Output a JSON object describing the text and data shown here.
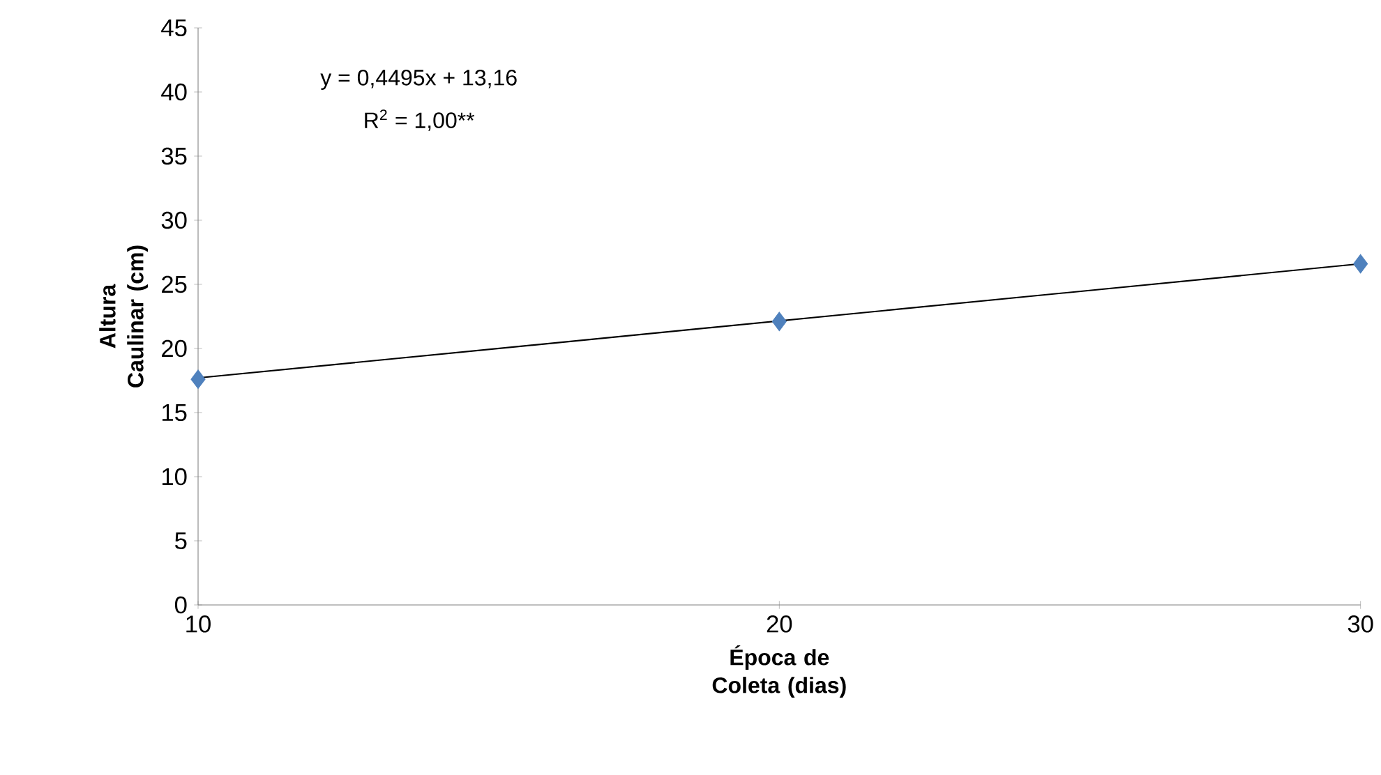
{
  "chart_data": {
    "type": "scatter",
    "xlabel": "Época de Coleta (dias)",
    "ylabel": "Altura Caulinar (cm)",
    "series": [
      {
        "color": "#4f81bd",
        "marker": "diamond",
        "x": [
          10,
          20,
          30
        ],
        "values": [
          17.6,
          22.1,
          26.6
        ]
      },
      {
        "type": "line",
        "color": "#000000",
        "marker": "none",
        "line_style": "solid",
        "x": [
          10,
          30
        ],
        "values": [
          17.7,
          26.6
        ]
      }
    ],
    "annotations": [
      "y = 0,4495x + 13,16",
      "R$^{2}$ = 1,00**"
    ],
    "xlim": [
      10,
      30
    ],
    "xticks": [
      10,
      20,
      30
    ],
    "ylim": [
      0,
      45
    ],
    "yticks": [
      0,
      5,
      10,
      15,
      20,
      25,
      30,
      35,
      40,
      45
    ],
    "grid": false
  }
}
